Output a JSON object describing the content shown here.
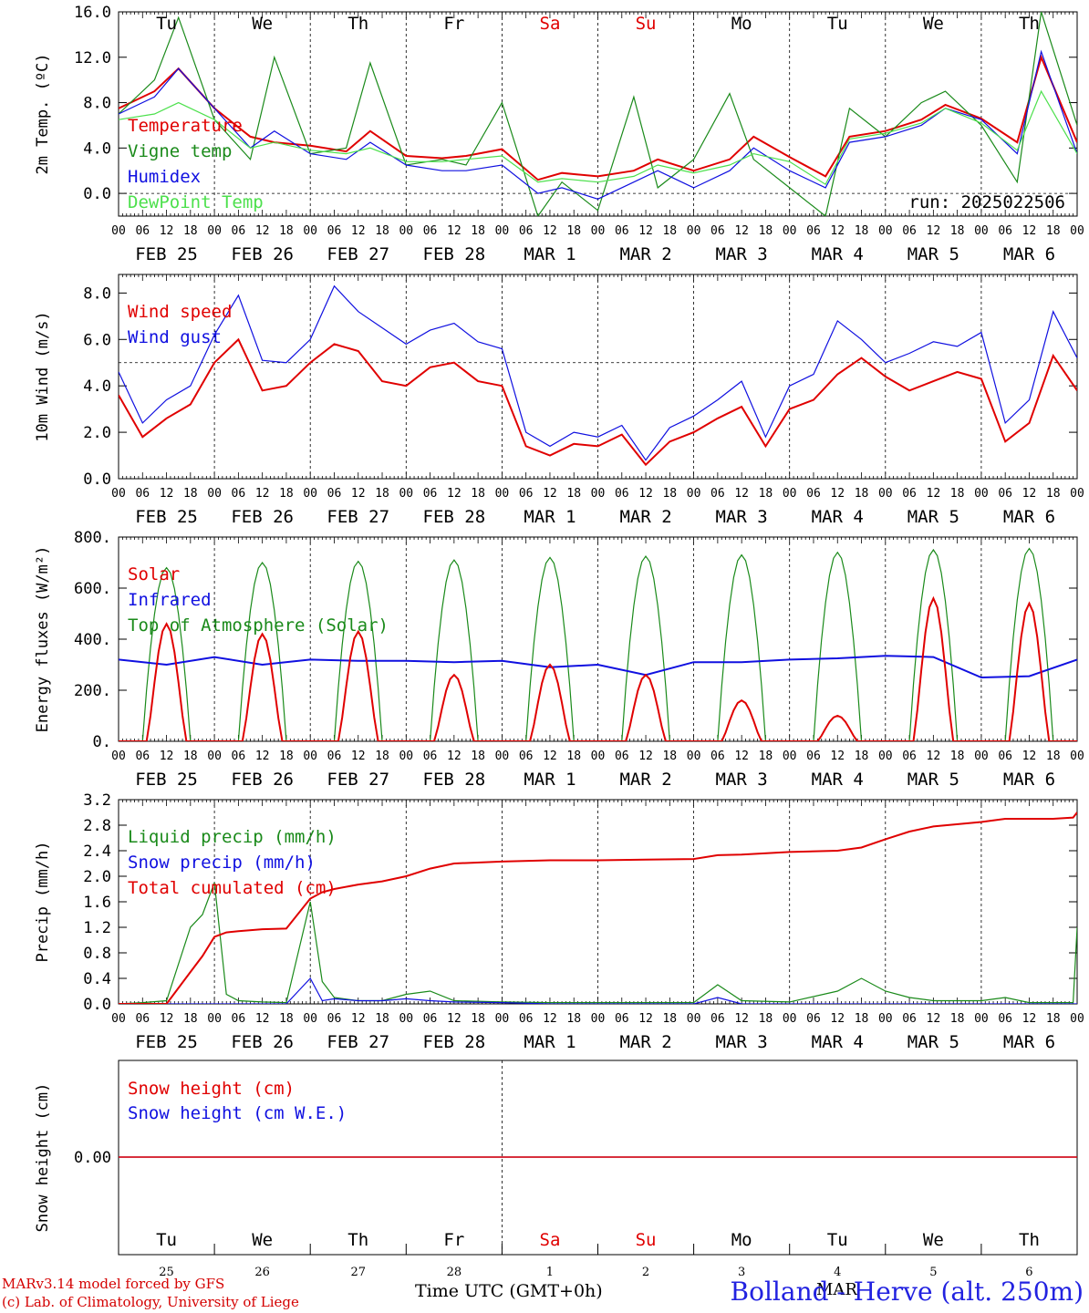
{
  "chart_data": [
    {
      "type": "line",
      "ylabel": "2m Temp. (ºC)",
      "ylim": [
        -2,
        16
      ],
      "yticks": [
        "0.0",
        "4.0",
        "8.0",
        "12.0",
        "16.0"
      ],
      "day_labels": [
        "Tu",
        "We",
        "Th",
        "Fr",
        "Sa",
        "Su",
        "Mo",
        "Tu",
        "We",
        "Th"
      ],
      "weekend_color": "#e00000",
      "annotation": "run: 2025022506",
      "x_hours": [
        0,
        9,
        15,
        24,
        33,
        39,
        48,
        57,
        63,
        72,
        81,
        87,
        96,
        105,
        111,
        120,
        129,
        135,
        144,
        153,
        159,
        168,
        177,
        183,
        192,
        201,
        207,
        216,
        225,
        231,
        240
      ],
      "series": [
        {
          "name": "Temperature",
          "color": "#e00000",
          "values": [
            7.5,
            9,
            11,
            7.5,
            5,
            4.5,
            4.2,
            3.7,
            5.5,
            3.3,
            3.1,
            3.3,
            3.9,
            1.2,
            1.8,
            1.5,
            2.0,
            3.0,
            2.0,
            3.0,
            5.0,
            3.2,
            1.5,
            5.0,
            5.5,
            6.5,
            7.8,
            6.6,
            4.5,
            12.0,
            4.5
          ]
        },
        {
          "name": "Vigne temp",
          "color": "#1a8a1a",
          "values": [
            7.0,
            10.0,
            15.5,
            6.5,
            3.0,
            12.0,
            3.5,
            4.0,
            11.5,
            2.5,
            3.0,
            2.5,
            8.0,
            -2.0,
            1.0,
            -1.5,
            8.5,
            0.5,
            3.0,
            8.8,
            3.0,
            0.5,
            -2.0,
            7.5,
            5.0,
            8.0,
            9.0,
            6.0,
            1.0,
            16.0,
            6.0
          ]
        },
        {
          "name": "Humidex",
          "color": "#1010e0",
          "values": [
            7.0,
            8.5,
            11.0,
            7.5,
            4.0,
            5.5,
            3.5,
            3.0,
            4.5,
            2.5,
            2.0,
            2.0,
            2.5,
            0.0,
            0.5,
            -0.5,
            1.0,
            2.0,
            0.5,
            2.0,
            4.0,
            2.0,
            0.5,
            4.5,
            5.0,
            6.0,
            7.5,
            6.5,
            3.5,
            12.5,
            3.5
          ]
        },
        {
          "name": "DewPoint Temp",
          "color": "#4ce04c",
          "values": [
            6.5,
            7.0,
            8.0,
            6.5,
            4.0,
            4.5,
            3.8,
            3.5,
            4.0,
            2.8,
            2.8,
            3.0,
            3.3,
            1.0,
            1.3,
            1.0,
            1.5,
            2.5,
            1.8,
            2.5,
            3.5,
            2.8,
            0.8,
            4.8,
            5.3,
            6.2,
            7.5,
            6.2,
            3.8,
            9.0,
            3.5
          ]
        }
      ]
    },
    {
      "type": "line",
      "ylabel": "10m Wind (m/s)",
      "ylim": [
        0,
        8.8
      ],
      "yticks": [
        "0.0",
        "2.0",
        "4.0",
        "6.0",
        "8.0"
      ],
      "reference_line": 5.0,
      "x_hours": [
        0,
        6,
        12,
        18,
        24,
        30,
        36,
        42,
        48,
        54,
        60,
        66,
        72,
        78,
        84,
        90,
        96,
        102,
        108,
        114,
        120,
        126,
        132,
        138,
        144,
        150,
        156,
        162,
        168,
        174,
        180,
        186,
        192,
        198,
        204,
        210,
        216,
        222,
        228,
        234,
        240
      ],
      "series": [
        {
          "name": "Wind speed",
          "color": "#e00000",
          "values": [
            3.6,
            1.8,
            2.6,
            3.2,
            5.0,
            6.0,
            3.8,
            4.0,
            5.0,
            5.8,
            5.5,
            4.2,
            4.0,
            4.8,
            5.0,
            4.2,
            4.0,
            1.4,
            1.0,
            1.5,
            1.4,
            1.9,
            0.6,
            1.6,
            2.0,
            2.6,
            3.1,
            1.4,
            3.0,
            3.4,
            4.5,
            5.2,
            4.4,
            3.8,
            4.2,
            4.6,
            4.3,
            1.6,
            2.4,
            5.3,
            3.8
          ]
        },
        {
          "name": "Wind gust",
          "color": "#1010e0",
          "values": [
            4.6,
            2.4,
            3.4,
            4.0,
            6.2,
            7.9,
            5.1,
            5.0,
            6.0,
            8.3,
            7.2,
            6.5,
            5.8,
            6.4,
            6.7,
            5.9,
            5.6,
            2.0,
            1.4,
            2.0,
            1.8,
            2.3,
            0.8,
            2.2,
            2.7,
            3.4,
            4.2,
            1.8,
            4.0,
            4.5,
            6.8,
            6.0,
            5.0,
            5.4,
            5.9,
            5.7,
            6.3,
            2.4,
            3.4,
            7.2,
            5.2
          ]
        }
      ]
    },
    {
      "type": "line",
      "ylabel": "Energy fluxes (W/m²)",
      "ylim": [
        0,
        800
      ],
      "yticks": [
        "0.",
        "200.",
        "400.",
        "600.",
        "800."
      ],
      "solar_peaks": [
        460,
        420,
        430,
        260,
        300,
        260,
        160,
        100,
        560,
        540
      ],
      "toa_peaks": [
        680,
        700,
        705,
        710,
        720,
        725,
        730,
        740,
        750,
        755
      ],
      "infrared_hours": [
        0,
        12,
        24,
        36,
        48,
        60,
        72,
        84,
        96,
        108,
        120,
        132,
        144,
        156,
        168,
        180,
        192,
        204,
        216,
        228,
        240
      ],
      "infrared_values": [
        320,
        300,
        330,
        300,
        320,
        315,
        315,
        310,
        315,
        290,
        300,
        260,
        310,
        310,
        320,
        325,
        335,
        330,
        250,
        255,
        320
      ],
      "series": [
        {
          "name": "Solar",
          "color": "#e00000"
        },
        {
          "name": "Infrared",
          "color": "#1010e0"
        },
        {
          "name": "Top of Atmosphere (Solar)",
          "color": "#1a8a1a"
        }
      ]
    },
    {
      "type": "line",
      "ylabel": "Precip (mm/h)",
      "ylim": [
        0,
        3.2
      ],
      "yticks": [
        "0.0",
        "0.4",
        "0.8",
        "1.2",
        "1.6",
        "2.0",
        "2.4",
        "2.8",
        "3.2"
      ],
      "x_hours": [
        0,
        6,
        12,
        18,
        21,
        24,
        27,
        30,
        36,
        42,
        48,
        51,
        54,
        60,
        66,
        72,
        78,
        84,
        96,
        108,
        120,
        132,
        144,
        150,
        156,
        168,
        180,
        186,
        192,
        198,
        204,
        216,
        222,
        228,
        234,
        239,
        240
      ],
      "series": [
        {
          "name": "Liquid precip (mm/h)",
          "color": "#1a8a1a",
          "values": [
            0,
            0.02,
            0.05,
            1.2,
            1.4,
            1.9,
            0.15,
            0.05,
            0.03,
            0.02,
            1.6,
            0.35,
            0.1,
            0.05,
            0.05,
            0.15,
            0.2,
            0.05,
            0.03,
            0.02,
            0.02,
            0.02,
            0.02,
            0.3,
            0.05,
            0.03,
            0.2,
            0.4,
            0.2,
            0.1,
            0.05,
            0.05,
            0.1,
            0.02,
            0.02,
            0.02,
            1.2
          ]
        },
        {
          "name": "Snow precip (mm/h)",
          "color": "#1010e0",
          "values": [
            0,
            0,
            0,
            0,
            0,
            0,
            0,
            0,
            0,
            0,
            0.4,
            0.05,
            0.08,
            0.05,
            0.05,
            0.08,
            0.05,
            0.03,
            0.02,
            0,
            0,
            0,
            0,
            0.1,
            0,
            0,
            0,
            0,
            0,
            0,
            0,
            0,
            0,
            0,
            0,
            0,
            0
          ]
        },
        {
          "name": "Total cumulated (cm)",
          "color": "#e00000",
          "values": [
            0,
            0,
            0,
            0.5,
            0.75,
            1.05,
            1.12,
            1.14,
            1.17,
            1.18,
            1.65,
            1.75,
            1.8,
            1.87,
            1.92,
            2.0,
            2.12,
            2.2,
            2.23,
            2.25,
            2.25,
            2.26,
            2.27,
            2.33,
            2.34,
            2.38,
            2.4,
            2.45,
            2.58,
            2.7,
            2.78,
            2.85,
            2.9,
            2.9,
            2.9,
            2.92,
            3.0
          ]
        }
      ]
    },
    {
      "type": "line",
      "ylabel": "Snow height (cm)",
      "yticks": [
        "0.00"
      ],
      "day_labels": [
        "Tu",
        "We",
        "Th",
        "Fr",
        "Sa",
        "Su",
        "Mo",
        "Tu",
        "We",
        "Th"
      ],
      "day_numbers": [
        "25",
        "26",
        "27",
        "28",
        "1",
        "2",
        "3",
        "4",
        "5",
        "6"
      ],
      "series": [
        {
          "name": "Snow height (cm)",
          "color": "#e00000",
          "values": [
            0,
            0
          ]
        },
        {
          "name": "Snow height (cm W.E.)",
          "color": "#1010e0",
          "values": [
            0,
            0
          ]
        }
      ]
    }
  ],
  "x_axis": {
    "hour_ticks": [
      "00",
      "06",
      "12",
      "18"
    ],
    "date_labels": [
      "FEB 25",
      "FEB 26",
      "FEB 27",
      "FEB 28",
      "MAR  1",
      "MAR  2",
      "MAR  3",
      "MAR  4",
      "MAR  5",
      "MAR  6"
    ],
    "last_tick": "00"
  },
  "footer": {
    "credit_line1": "MARv3.14 model forced by GFS",
    "credit_line2": "(c) Lab. of Climatology, University of Liege",
    "xlabel": "Time UTC (GMT+0h)",
    "station": "Bolland - Herve (alt. 250m)",
    "month": "MAR"
  }
}
